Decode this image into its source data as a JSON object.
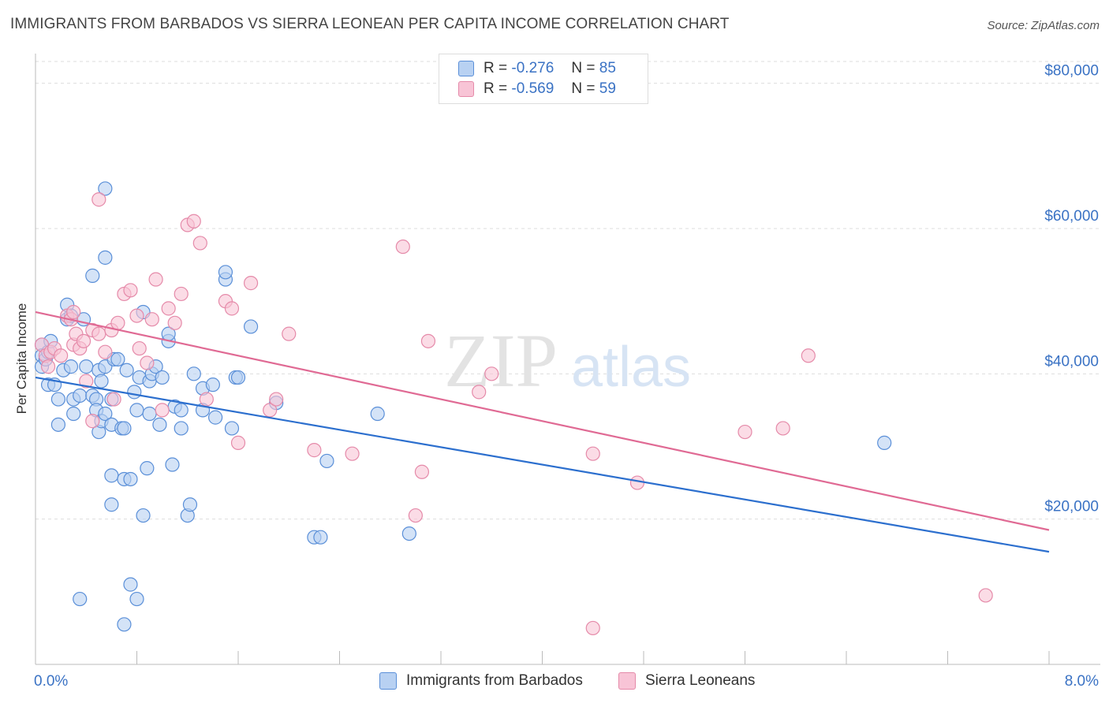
{
  "title": "IMMIGRANTS FROM BARBADOS VS SIERRA LEONEAN PER CAPITA INCOME CORRELATION CHART",
  "source": "Source: ZipAtlas.com",
  "watermark": {
    "zip": "ZIP",
    "atlas": "atlas"
  },
  "legend": {
    "r_label": "R =",
    "n_label": "N =",
    "series1": {
      "r": "-0.276",
      "n": "85"
    },
    "series2": {
      "r": "-0.569",
      "n": "59"
    }
  },
  "colors": {
    "blue_fill": "#b8d1f2",
    "blue_stroke": "#5a8fd8",
    "blue_line": "#2c6fce",
    "pink_fill": "#f8c4d6",
    "pink_stroke": "#e58aa9",
    "pink_line": "#e06a94",
    "tick_text": "#3a72c4",
    "grid": "#dddddd"
  },
  "chart_data": {
    "type": "scatter",
    "title": "IMMIGRANTS FROM BARBADOS VS SIERRA LEONEAN PER CAPITA INCOME CORRELATION CHART",
    "xlabel": "",
    "ylabel": "Per Capita Income",
    "xlim": [
      0,
      8
    ],
    "ylim": [
      0,
      83000
    ],
    "x_tick_labels": [
      "0.0%",
      "8.0%"
    ],
    "y_ticks": [
      20000,
      40000,
      60000,
      80000
    ],
    "y_tick_labels": [
      "$20,000",
      "$40,000",
      "$60,000",
      "$80,000"
    ],
    "grid": true,
    "legend_position": "top-center",
    "series": [
      {
        "name": "Immigrants from Barbados",
        "trend": [
          [
            0.0,
            39500
          ],
          [
            8.0,
            15500
          ]
        ],
        "points": [
          [
            0.05,
            44000
          ],
          [
            0.05,
            42500
          ],
          [
            0.05,
            41000
          ],
          [
            0.08,
            42000
          ],
          [
            0.1,
            43000
          ],
          [
            0.12,
            44500
          ],
          [
            0.1,
            38500
          ],
          [
            0.15,
            38500
          ],
          [
            0.18,
            36500
          ],
          [
            0.18,
            33000
          ],
          [
            0.22,
            40500
          ],
          [
            0.25,
            47500
          ],
          [
            0.25,
            49500
          ],
          [
            0.28,
            48000
          ],
          [
            0.28,
            41000
          ],
          [
            0.3,
            36500
          ],
          [
            0.3,
            34500
          ],
          [
            0.35,
            37000
          ],
          [
            0.38,
            47500
          ],
          [
            0.4,
            41000
          ],
          [
            0.45,
            37000
          ],
          [
            0.48,
            36500
          ],
          [
            0.5,
            40500
          ],
          [
            0.5,
            32000
          ],
          [
            0.48,
            35000
          ],
          [
            0.52,
            33500
          ],
          [
            0.55,
            34500
          ],
          [
            0.52,
            39000
          ],
          [
            0.55,
            41000
          ],
          [
            0.6,
            33000
          ],
          [
            0.6,
            26000
          ],
          [
            0.6,
            22000
          ],
          [
            0.6,
            36500
          ],
          [
            0.62,
            42000
          ],
          [
            0.65,
            42000
          ],
          [
            0.68,
            32500
          ],
          [
            0.7,
            32500
          ],
          [
            0.72,
            40500
          ],
          [
            0.7,
            25500
          ],
          [
            0.75,
            25500
          ],
          [
            0.78,
            37500
          ],
          [
            0.8,
            35000
          ],
          [
            0.82,
            39500
          ],
          [
            0.85,
            20500
          ],
          [
            0.85,
            48500
          ],
          [
            0.88,
            27000
          ],
          [
            0.9,
            39000
          ],
          [
            0.9,
            34500
          ],
          [
            0.92,
            40000
          ],
          [
            0.95,
            41000
          ],
          [
            0.98,
            33000
          ],
          [
            1.0,
            39500
          ],
          [
            1.05,
            44500
          ],
          [
            1.05,
            45500
          ],
          [
            1.08,
            27500
          ],
          [
            1.1,
            35500
          ],
          [
            1.15,
            35000
          ],
          [
            1.15,
            32500
          ],
          [
            1.2,
            20500
          ],
          [
            1.22,
            22000
          ],
          [
            1.25,
            40000
          ],
          [
            1.32,
            38000
          ],
          [
            1.32,
            35000
          ],
          [
            1.4,
            38500
          ],
          [
            1.42,
            34000
          ],
          [
            1.5,
            53000
          ],
          [
            1.5,
            54000
          ],
          [
            1.55,
            32500
          ],
          [
            1.58,
            39500
          ],
          [
            1.6,
            39500
          ],
          [
            1.7,
            46500
          ],
          [
            1.9,
            36000
          ],
          [
            2.2,
            17500
          ],
          [
            2.25,
            17500
          ],
          [
            2.3,
            28000
          ],
          [
            2.7,
            34500
          ],
          [
            2.95,
            18000
          ],
          [
            0.75,
            11000
          ],
          [
            0.45,
            53500
          ],
          [
            0.55,
            56000
          ],
          [
            0.55,
            65500
          ],
          [
            0.7,
            5500
          ],
          [
            0.8,
            9000
          ],
          [
            0.35,
            9000
          ],
          [
            6.7,
            30500
          ]
        ]
      },
      {
        "name": "Sierra Leoneans",
        "trend": [
          [
            0.0,
            48500
          ],
          [
            8.0,
            18500
          ]
        ],
        "points": [
          [
            0.05,
            44000
          ],
          [
            0.08,
            42500
          ],
          [
            0.1,
            41000
          ],
          [
            0.12,
            43000
          ],
          [
            0.15,
            43500
          ],
          [
            0.2,
            42500
          ],
          [
            0.25,
            48000
          ],
          [
            0.28,
            47500
          ],
          [
            0.3,
            44000
          ],
          [
            0.32,
            45500
          ],
          [
            0.35,
            43500
          ],
          [
            0.38,
            44500
          ],
          [
            0.4,
            39000
          ],
          [
            0.45,
            46000
          ],
          [
            0.5,
            45500
          ],
          [
            0.55,
            43000
          ],
          [
            0.6,
            46000
          ],
          [
            0.62,
            36500
          ],
          [
            0.65,
            47000
          ],
          [
            0.7,
            51000
          ],
          [
            0.75,
            51500
          ],
          [
            0.8,
            48000
          ],
          [
            0.82,
            43500
          ],
          [
            0.88,
            41500
          ],
          [
            0.92,
            47500
          ],
          [
            0.95,
            53000
          ],
          [
            1.0,
            35000
          ],
          [
            1.05,
            49000
          ],
          [
            1.1,
            47000
          ],
          [
            1.15,
            51000
          ],
          [
            1.2,
            60500
          ],
          [
            1.25,
            61000
          ],
          [
            1.3,
            58000
          ],
          [
            1.35,
            36500
          ],
          [
            1.5,
            50000
          ],
          [
            1.55,
            49000
          ],
          [
            1.6,
            30500
          ],
          [
            1.7,
            52500
          ],
          [
            1.85,
            35000
          ],
          [
            1.9,
            36500
          ],
          [
            2.0,
            45500
          ],
          [
            2.2,
            29500
          ],
          [
            2.5,
            29000
          ],
          [
            2.9,
            57500
          ],
          [
            3.05,
            26500
          ],
          [
            3.0,
            20500
          ],
          [
            3.1,
            44500
          ],
          [
            3.5,
            37500
          ],
          [
            3.6,
            40000
          ],
          [
            4.4,
            29000
          ],
          [
            4.4,
            5000
          ],
          [
            4.75,
            25000
          ],
          [
            5.6,
            32000
          ],
          [
            5.9,
            32500
          ],
          [
            6.1,
            42500
          ],
          [
            7.5,
            9500
          ],
          [
            0.5,
            64000
          ],
          [
            0.45,
            33500
          ],
          [
            0.3,
            48500
          ]
        ]
      }
    ]
  },
  "bottom_legend": {
    "item1": "Immigrants from Barbados",
    "item2": "Sierra Leoneans"
  }
}
